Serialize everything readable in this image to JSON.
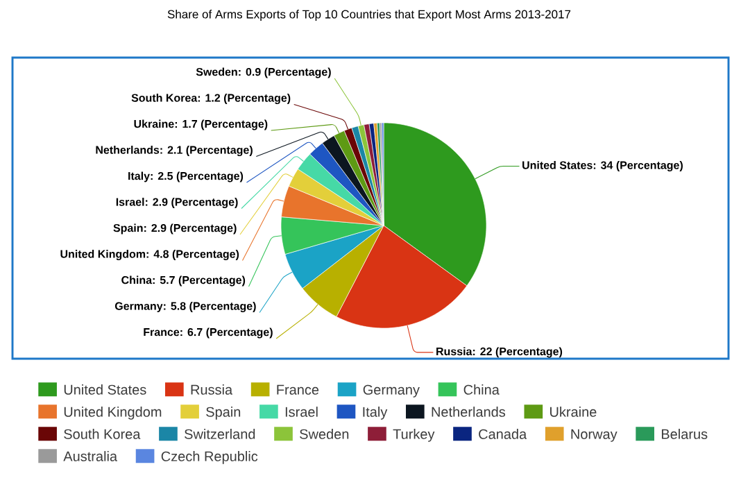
{
  "chart_data": {
    "type": "pie",
    "title": "Share of Arms Exports of Top 10 Countries that Export Most Arms 2013-2017",
    "categories": [
      "United States",
      "Russia",
      "France",
      "Germany",
      "China",
      "United Kingdom",
      "Spain",
      "Israel",
      "Italy",
      "Netherlands",
      "Ukraine",
      "South Korea",
      "Switzerland",
      "Sweden",
      "Turkey",
      "Canada",
      "Norway",
      "Belarus",
      "Australia",
      "Czech Republic"
    ],
    "values": [
      34,
      22,
      6.7,
      5.8,
      5.7,
      4.8,
      2.9,
      2.9,
      2.5,
      2.1,
      1.7,
      1.2,
      1.0,
      0.9,
      0.8,
      0.7,
      0.5,
      0.4,
      0.3,
      0.3
    ],
    "colors": [
      "#2e9a1e",
      "#d93414",
      "#b8b000",
      "#1ba3c6",
      "#35c45a",
      "#e8742c",
      "#e3cf3a",
      "#46d9a6",
      "#1e56c2",
      "#0c1620",
      "#5e9a14",
      "#6a0606",
      "#1b86a6",
      "#8cc43a",
      "#8e1e38",
      "#0a2580",
      "#e0a02c",
      "#2a9a5a",
      "#9a9a9a",
      "#5a86e0"
    ],
    "value_labels": [
      "United States: 34 (Percentage)",
      "Russia: 22 (Percentage)",
      "France: 6.7 (Percentage)",
      "Germany: 5.8 (Percentage)",
      "China: 5.7 (Percentage)",
      "United Kingdom: 4.8 (Percentage)",
      "Spain: 2.9 (Percentage)",
      "Israel: 2.9 (Percentage)",
      "Italy: 2.5 (Percentage)",
      "Netherlands: 2.1 (Percentage)",
      "Ukraine: 1.7 (Percentage)",
      "South Korea: 1.2 (Percentage)",
      null,
      "Sweden: 0.9 (Percentage)",
      null,
      null,
      null,
      null,
      null,
      null
    ],
    "legend": "bottom"
  }
}
